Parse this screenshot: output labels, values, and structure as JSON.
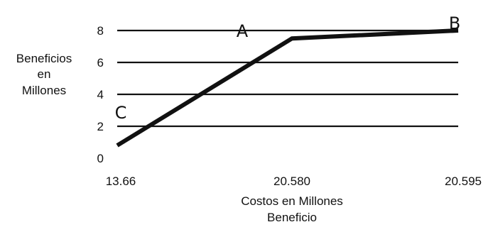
{
  "chart_data": {
    "type": "line",
    "title": "",
    "ylabel_lines": [
      "Beneficios",
      "en",
      "Millones"
    ],
    "xlabel": "Costos en Millones",
    "xlabel_sub": "Beneficio",
    "x_tick_labels": [
      "13.66",
      "20.580",
      "20.595"
    ],
    "y_ticks": [
      0,
      2,
      4,
      6,
      8
    ],
    "ylim": [
      0,
      8
    ],
    "grid": true,
    "series": [
      {
        "points": [
          {
            "x": "13.66",
            "y": 0.8
          },
          {
            "x": "20.580",
            "y": 7.5
          },
          {
            "x": "20.595",
            "y": 8.0
          }
        ]
      }
    ],
    "annotations": [
      {
        "text": "A",
        "x": "20.580",
        "y": 8.0
      },
      {
        "text": "B",
        "x": "20.595",
        "y": 8.5
      },
      {
        "text": "C",
        "x": "13.66",
        "y": 2.9
      }
    ],
    "colors": {
      "line": "#111111",
      "grid": "#111111",
      "text": "#111111"
    }
  }
}
